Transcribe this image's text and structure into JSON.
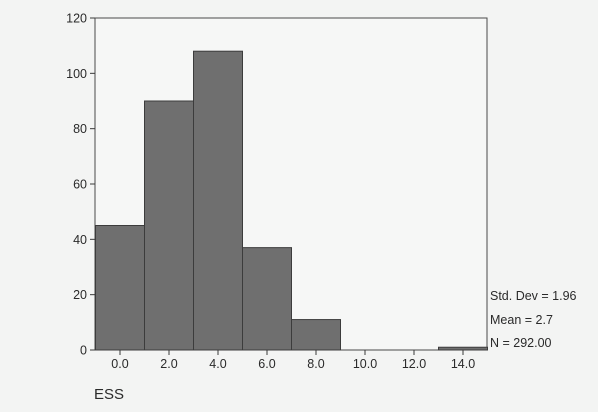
{
  "chart_data": {
    "type": "bar",
    "title": "",
    "xlabel": "ESS",
    "ylabel": "",
    "x_ticks": [
      "0.0",
      "2.0",
      "4.0",
      "6.0",
      "8.0",
      "10.0",
      "12.0",
      "14.0"
    ],
    "y_ticks": [
      "0",
      "20",
      "40",
      "60",
      "80",
      "100",
      "120"
    ],
    "ylim": [
      0,
      120
    ],
    "bins": [
      {
        "center": 0.0,
        "count": 45
      },
      {
        "center": 2.0,
        "count": 90
      },
      {
        "center": 4.0,
        "count": 108
      },
      {
        "center": 6.0,
        "count": 37
      },
      {
        "center": 8.0,
        "count": 11
      },
      {
        "center": 10.0,
        "count": 0
      },
      {
        "center": 12.0,
        "count": 0
      },
      {
        "center": 14.0,
        "count": 1
      }
    ],
    "stats": {
      "std_dev": "Std. Dev = 1.96",
      "mean": "Mean = 2.7",
      "n": "N = 292.00"
    },
    "colors": {
      "bar_fill": "#6f6f6f",
      "bar_edge": "#3c3c3c",
      "background": "#f3f4f3"
    },
    "grid": false
  }
}
